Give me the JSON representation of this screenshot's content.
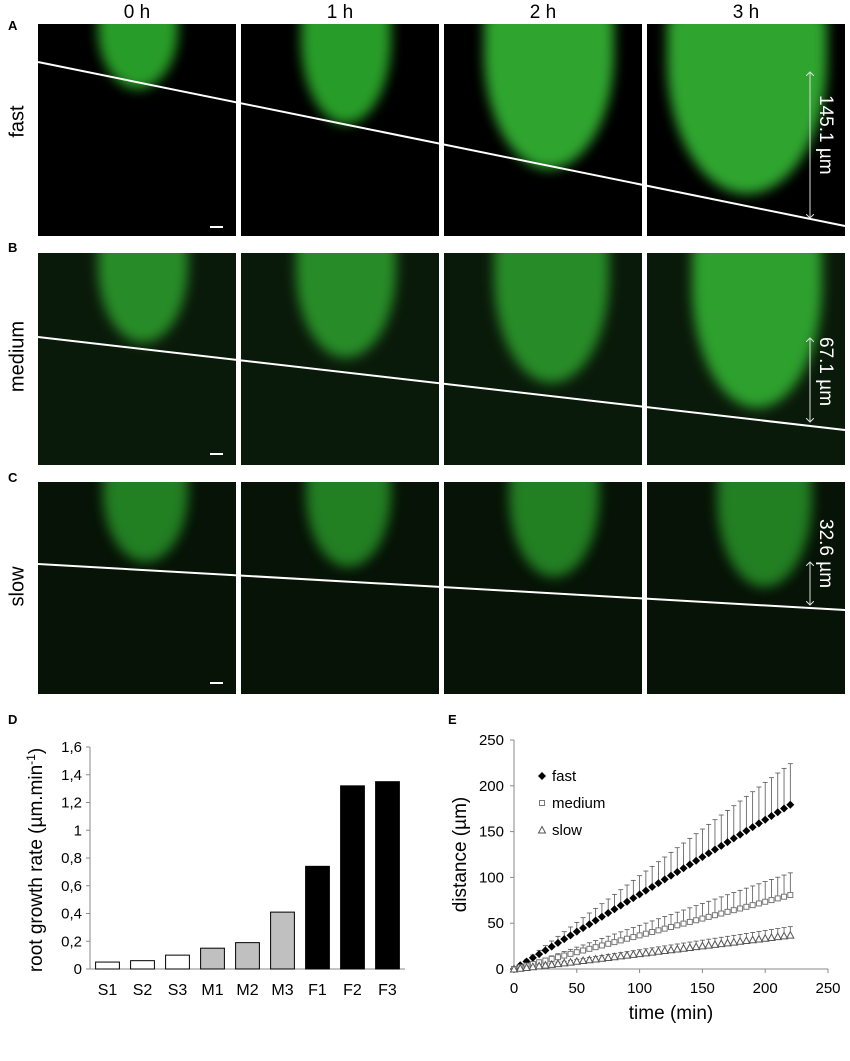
{
  "panels": {
    "a": "A",
    "b": "B",
    "c": "C",
    "d": "D",
    "e": "E"
  },
  "times": [
    "0 h",
    "1 h",
    "2 h",
    "3 h"
  ],
  "rows": [
    {
      "label": "fast",
      "measurement": "145.1 µm"
    },
    {
      "label": "medium",
      "measurement": "67.1 µm"
    },
    {
      "label": "slow",
      "measurement": "32.6 µm"
    }
  ],
  "colors": {
    "fluorescence": "#2ecc2e",
    "background": "#000000"
  },
  "chart_data": [
    {
      "type": "bar",
      "categories": [
        "S1",
        "S2",
        "S3",
        "M1",
        "M2",
        "M3",
        "F1",
        "F2",
        "F3"
      ],
      "values": [
        0.05,
        0.06,
        0.1,
        0.15,
        0.19,
        0.41,
        0.74,
        1.32,
        1.35
      ],
      "bar_colors": [
        "#ffffff",
        "#ffffff",
        "#ffffff",
        "#c0c0c0",
        "#c0c0c0",
        "#c0c0c0",
        "#000000",
        "#000000",
        "#000000"
      ],
      "ylabel_main": "root growth rate (µm.min",
      "ylabel_sup": "-1",
      "ylabel_end": ")",
      "ylim": [
        0,
        1.6
      ],
      "yticks": [
        "0",
        "0,2",
        "0,4",
        "0,6",
        "0,8",
        "1",
        "1,2",
        "1,4",
        "1,6"
      ],
      "grid": false
    },
    {
      "type": "scatter",
      "xlabel": "time (min)",
      "ylabel": "distance (µm)",
      "xlim": [
        0,
        250
      ],
      "ylim": [
        0,
        250
      ],
      "xticks": [
        "0",
        "50",
        "100",
        "150",
        "200",
        "250"
      ],
      "yticks": [
        "0",
        "50",
        "100",
        "150",
        "200",
        "250"
      ],
      "legend_position": "top-left",
      "series": [
        {
          "name": "fast",
          "marker": "diamond",
          "slope": 0.815,
          "end_x": 220,
          "error_fraction": 0.25
        },
        {
          "name": "medium",
          "marker": "square",
          "slope": 0.367,
          "end_x": 220,
          "error_fraction": 0.3
        },
        {
          "name": "slow",
          "marker": "triangle",
          "slope": 0.168,
          "end_x": 220,
          "error_fraction": 0.25
        }
      ],
      "sample_interval": 5
    }
  ]
}
